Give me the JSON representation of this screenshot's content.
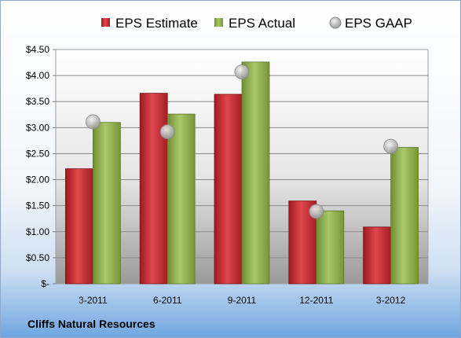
{
  "chart_data": {
    "type": "bar",
    "categories": [
      "3-2011",
      "6-2011",
      "9-2011",
      "12-2011",
      "3-2012"
    ],
    "series": [
      {
        "name": "EPS Estimate",
        "values": [
          2.21,
          3.66,
          3.64,
          1.59,
          1.09
        ],
        "color": "#c0262d",
        "style": "bar"
      },
      {
        "name": "EPS Actual",
        "values": [
          3.1,
          3.26,
          4.26,
          1.4,
          2.62
        ],
        "color": "#8fb04a",
        "style": "bar"
      },
      {
        "name": "EPS GAAP",
        "values": [
          3.11,
          2.92,
          4.07,
          1.39,
          2.64
        ],
        "color": "#b3b3b3",
        "style": "marker"
      }
    ],
    "yticks": [
      "$-",
      "$0.50",
      "$1.00",
      "$1.50",
      "$2.00",
      "$2.50",
      "$3.00",
      "$3.50",
      "$4.00",
      "$4.50"
    ],
    "ylim": [
      0,
      4.5
    ],
    "grid": true,
    "legend_position": "top",
    "footer": "Cliffs Natural Resources"
  }
}
